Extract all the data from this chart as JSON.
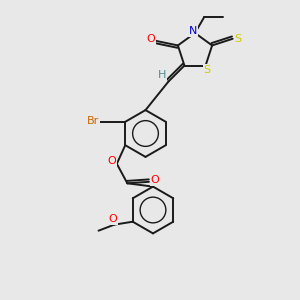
{
  "bg_color": "#e8e8e8",
  "bond_color": "#1a1a1a",
  "bond_width": 1.4,
  "atom_colors": {
    "O": "#ff0000",
    "N": "#0000cc",
    "S": "#cccc00",
    "Br": "#cc6600",
    "H": "#4a9090",
    "C": "#1a1a1a"
  },
  "label_fontsize": 8.0,
  "label_small_fontsize": 7.0
}
